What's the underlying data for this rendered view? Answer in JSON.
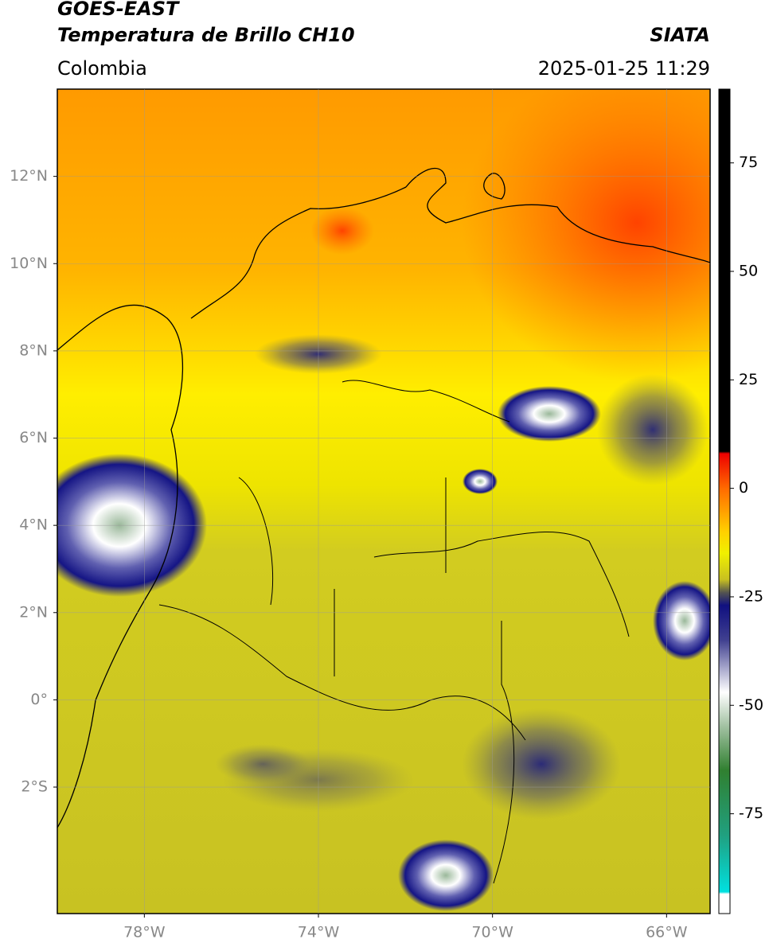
{
  "header": {
    "title": "GOES-EAST",
    "subtitle": "Temperatura de Brillo CH10",
    "source": "SIATA",
    "region": "Colombia",
    "datetime": "2025-01-25 11:29"
  },
  "map": {
    "xlim": [
      -80,
      -65
    ],
    "ylim": [
      -4.9,
      14
    ],
    "xticks": [
      {
        "value": -78,
        "label": "78°W"
      },
      {
        "value": -74,
        "label": "74°W"
      },
      {
        "value": -70,
        "label": "70°W"
      },
      {
        "value": -66,
        "label": "66°W"
      }
    ],
    "yticks": [
      {
        "value": 12,
        "label": "12°N"
      },
      {
        "value": 10,
        "label": "10°N"
      },
      {
        "value": 8,
        "label": "8°N"
      },
      {
        "value": 6,
        "label": "6°N"
      },
      {
        "value": 4,
        "label": "4°N"
      },
      {
        "value": 2,
        "label": "2°N"
      },
      {
        "value": 0,
        "label": "0°"
      },
      {
        "value": -2,
        "label": "2°S"
      }
    ],
    "grid": true
  },
  "colorbar": {
    "lim": [
      -98,
      92
    ],
    "ticks": [
      75,
      50,
      25,
      0,
      -25,
      -50,
      -75
    ],
    "stops": [
      {
        "value": 92,
        "color": "#000000"
      },
      {
        "value": 8.5,
        "color": "#000000"
      },
      {
        "value": 8,
        "color": "#ee0000"
      },
      {
        "value": 0,
        "color": "#ff6a00"
      },
      {
        "value": -10,
        "color": "#ffd000"
      },
      {
        "value": -15,
        "color": "#f0f000"
      },
      {
        "value": -21,
        "color": "#c8c020"
      },
      {
        "value": -24,
        "color": "#555550"
      },
      {
        "value": -27,
        "color": "#101080"
      },
      {
        "value": -35,
        "color": "#404090"
      },
      {
        "value": -47,
        "color": "#ffffff"
      },
      {
        "value": -55,
        "color": "#a0c0a0"
      },
      {
        "value": -65,
        "color": "#308030"
      },
      {
        "value": -80,
        "color": "#20a080"
      },
      {
        "value": -93,
        "color": "#00e0e0"
      },
      {
        "value": -93.5,
        "color": "#ffffff"
      },
      {
        "value": -98,
        "color": "#ffffff"
      }
    ]
  }
}
